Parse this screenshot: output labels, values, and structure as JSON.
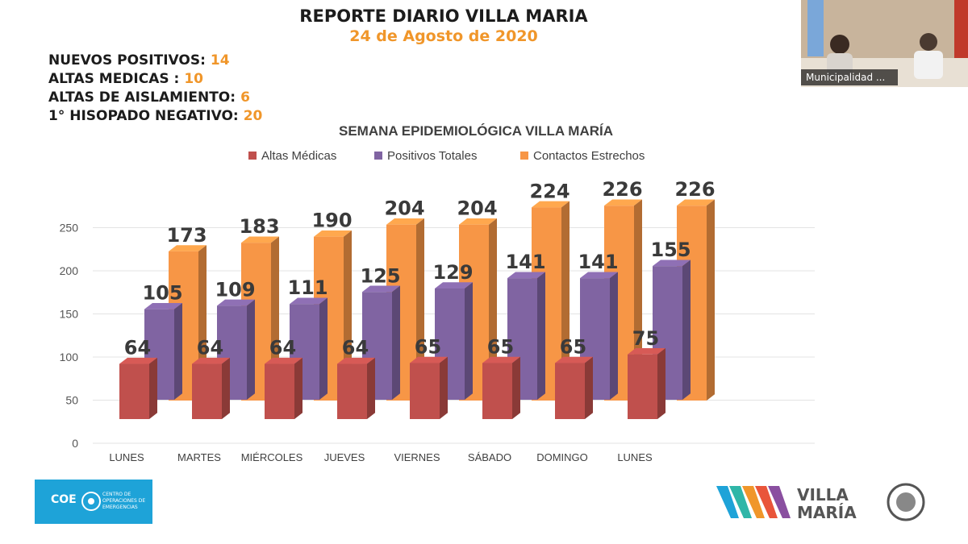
{
  "report": {
    "title": "REPORTE DIARIO VILLA MARIA",
    "date": "24 de Agosto de 2020",
    "stats": [
      {
        "label": "NUEVOS POSITIVOS:",
        "value": "14"
      },
      {
        "label": "ALTAS MEDICAS :",
        "value": "10"
      },
      {
        "label": "ALTAS DE AISLAMIENTO:",
        "value": "6"
      },
      {
        "label": "1° HISOPADO NEGATIVO:",
        "value": "20"
      }
    ]
  },
  "video": {
    "name_label": "Municipalidad ..."
  },
  "logos": {
    "coe": "COE",
    "coe_sub": "CENTRO DE OPERACIONES DE EMERGENCIAS",
    "villa_maria": "VILLA MARÍA"
  },
  "colors": {
    "altas": "#c0504d",
    "positivos": "#8064a2",
    "contactos": "#f79646",
    "accent": "#f0962a"
  },
  "chart_data": {
    "type": "bar",
    "title": "SEMANA EPIDEMIOLÓGICA VILLA MARÍA",
    "categories": [
      "LUNES",
      "MARTES",
      "MIÉRCOLES",
      "JUEVES",
      "VIERNES",
      "SÁBADO",
      "DOMINGO",
      "LUNES"
    ],
    "series": [
      {
        "name": "Altas Médicas",
        "values": [
          64,
          64,
          64,
          64,
          65,
          65,
          65,
          75
        ]
      },
      {
        "name": "Positivos Totales",
        "values": [
          105,
          109,
          111,
          125,
          129,
          141,
          141,
          155
        ]
      },
      {
        "name": "Contactos Estrechos",
        "values": [
          173,
          183,
          190,
          204,
          204,
          224,
          226,
          226
        ]
      }
    ],
    "yticks": [
      0,
      50,
      100,
      150,
      200,
      250
    ],
    "ylim": [
      0,
      250
    ],
    "legend": "top",
    "grid": true,
    "style": "3d"
  }
}
